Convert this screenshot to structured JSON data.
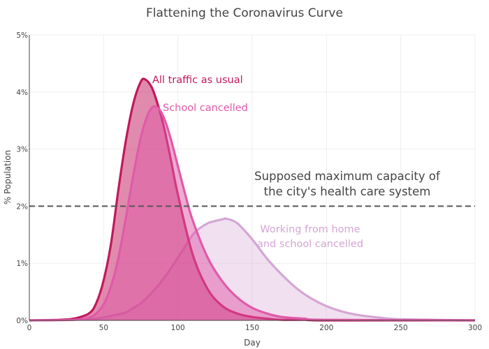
{
  "colors": {
    "usual": "#c2185b",
    "school": "#e05aa8",
    "home": "#d4a6d4",
    "capacity": "#555555",
    "annotation": "#444444"
  },
  "chart_data": {
    "type": "area",
    "title": "Flattening the Coronavirus Curve",
    "xlabel": "Day",
    "ylabel": "% Population",
    "xlim": [
      0,
      300
    ],
    "ylim": [
      0,
      5
    ],
    "x_ticks": [
      0,
      50,
      100,
      150,
      200,
      250,
      300
    ],
    "y_ticks": [
      0,
      1,
      2,
      3,
      4,
      5
    ],
    "y_tick_labels": [
      "0%",
      "1%",
      "2%",
      "3%",
      "4%",
      "5%"
    ],
    "grid": true,
    "capacity_line": {
      "y": 2,
      "label_line1": "Supposed maximum capacity of",
      "label_line2": "the city's health care system"
    },
    "series": [
      {
        "name": "All traffic as usual",
        "x": [
          0,
          20,
          30,
          40,
          45,
          50,
          55,
          60,
          65,
          70,
          75,
          78,
          82,
          85,
          90,
          95,
          100,
          110,
          120,
          130,
          140,
          150,
          160,
          170,
          185,
          200,
          300
        ],
        "y": [
          0,
          0.01,
          0.03,
          0.12,
          0.3,
          0.7,
          1.35,
          2.3,
          3.15,
          3.8,
          4.18,
          4.22,
          4.1,
          3.9,
          3.45,
          2.85,
          2.2,
          1.15,
          0.55,
          0.25,
          0.12,
          0.06,
          0.03,
          0.01,
          0.01,
          0,
          0
        ]
      },
      {
        "name": "School cancelled",
        "x": [
          0,
          30,
          40,
          45,
          50,
          55,
          60,
          65,
          70,
          75,
          80,
          84,
          88,
          92,
          96,
          100,
          105,
          110,
          120,
          130,
          140,
          150,
          160,
          170,
          185,
          200,
          300
        ],
        "y": [
          0,
          0.01,
          0.05,
          0.12,
          0.28,
          0.6,
          1.1,
          1.8,
          2.55,
          3.2,
          3.62,
          3.75,
          3.68,
          3.45,
          3.1,
          2.7,
          2.2,
          1.75,
          1.1,
          0.68,
          0.4,
          0.22,
          0.12,
          0.06,
          0.03,
          0.01,
          0
        ]
      },
      {
        "name": "Working from home\nand school cancelled",
        "label_line1": "Working from home",
        "label_line2": "and school cancelled",
        "x": [
          0,
          40,
          55,
          65,
          70,
          75,
          80,
          85,
          90,
          95,
          100,
          105,
          110,
          115,
          120,
          125,
          130,
          133,
          140,
          150,
          160,
          170,
          180,
          190,
          200,
          210,
          220,
          235,
          250,
          300
        ],
        "y": [
          0,
          0.02,
          0.08,
          0.14,
          0.22,
          0.3,
          0.42,
          0.56,
          0.72,
          0.9,
          1.1,
          1.3,
          1.5,
          1.62,
          1.7,
          1.74,
          1.77,
          1.78,
          1.7,
          1.42,
          1.08,
          0.8,
          0.56,
          0.38,
          0.25,
          0.16,
          0.1,
          0.05,
          0.02,
          0
        ]
      }
    ]
  }
}
